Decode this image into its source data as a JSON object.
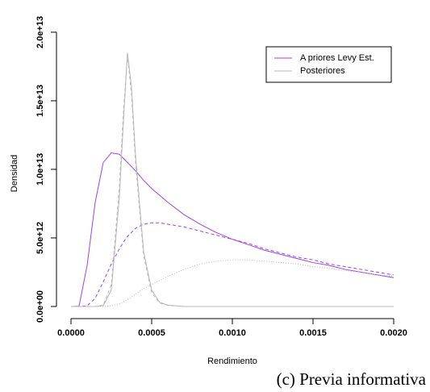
{
  "chart_data": {
    "type": "line",
    "xlabel": "Rendimiento",
    "ylabel": "Densidad",
    "caption": "(c) Previa informativa",
    "x": [
      0,
      5e-05,
      0.0001,
      0.00015,
      0.0002,
      0.00025,
      0.0003,
      0.000325,
      0.00035,
      0.000375,
      0.0004,
      0.00045,
      0.0005,
      0.00055,
      0.0006,
      0.0007,
      0.0008,
      0.0009,
      0.001,
      0.0011,
      0.0012,
      0.0013,
      0.0014,
      0.0015,
      0.0016,
      0.0017,
      0.0018,
      0.0019,
      0.002
    ],
    "series": [
      {
        "name": "A priores Levy Est.",
        "color": "#a040f0",
        "linestyle": "solid",
        "values": [
          0,
          20000000000.0,
          3000000000000.0,
          7600000000000.0,
          10500000000000.0,
          11200000000000.0,
          11100000000000.0,
          10800000000000.0,
          10500000000000.0,
          10200000000000.0,
          9900000000000.0,
          9200000000000.0,
          8600000000000.0,
          8100000000000.0,
          7600000000000.0,
          6700000000000.0,
          6000000000000.0,
          5400000000000.0,
          4900000000000.0,
          4500000000000.0,
          4100000000000.0,
          3800000000000.0,
          3500000000000.0,
          3200000000000.0,
          3000000000000.0,
          2700000000000.0,
          2500000000000.0,
          2300000000000.0,
          2100000000000.0
        ]
      },
      {
        "color": "#a040f0",
        "linestyle": "dashed",
        "values": [
          0,
          0,
          50000000000.0,
          600000000000.0,
          1800000000000.0,
          3100000000000.0,
          4200000000000.0,
          4700000000000.0,
          5100000000000.0,
          5400000000000.0,
          5700000000000.0,
          6000000000000.0,
          6100000000000.0,
          6100000000000.0,
          6000000000000.0,
          5800000000000.0,
          5500000000000.0,
          5200000000000.0,
          4900000000000.0,
          4600000000000.0,
          4200000000000.0,
          3900000000000.0,
          3600000000000.0,
          3400000000000.0,
          3100000000000.0,
          2900000000000.0,
          2700000000000.0,
          2500000000000.0,
          2300000000000.0
        ]
      },
      {
        "color": "#b8b8b8",
        "linestyle": "dotted",
        "values": [
          0,
          0,
          0,
          0,
          0,
          50000000000.0,
          200000000000.0,
          350000000000.0,
          500000000000.0,
          700000000000.0,
          900000000000.0,
          1300000000000.0,
          1600000000000.0,
          1900000000000.0,
          2200000000000.0,
          2700000000000.0,
          3100000000000.0,
          3300000000000.0,
          3400000000000.0,
          3400000000000.0,
          3300000000000.0,
          3200000000000.0,
          3100000000000.0,
          2900000000000.0,
          2800000000000.0,
          2600000000000.0,
          2500000000000.0,
          2300000000000.0,
          2200000000000.0
        ]
      },
      {
        "name": "Posteriores",
        "color": "#b8b8b8",
        "linestyle": "solid",
        "values": [
          0,
          0,
          0,
          0,
          50000000000.0,
          1200000000000.0,
          8000000000000.0,
          13500000000000.0,
          18500000000000.0,
          16000000000000.0,
          11000000000000.0,
          4000000000000.0,
          1200000000000.0,
          300000000000.0,
          100000000000.0,
          0,
          0,
          0,
          0,
          0,
          0,
          0,
          0,
          0,
          0,
          0,
          0,
          0,
          0
        ]
      },
      {
        "color": "#b8b8b8",
        "linestyle": "dashed",
        "values": [
          0,
          0,
          0,
          0,
          100000000000.0,
          1600000000000.0,
          8800000000000.0,
          14200000000000.0,
          18300000000000.0,
          15500000000000.0,
          10500000000000.0,
          3700000000000.0,
          1000000000000.0,
          250000000000.0,
          80000000000.0,
          0,
          0,
          0,
          0,
          0,
          0,
          0,
          0,
          0,
          0,
          0,
          0,
          0,
          0
        ]
      }
    ],
    "xlim": [
      -8e-05,
      0.002085
    ],
    "ylim": [
      -590000000000.0,
      21760000000000.0
    ],
    "xticks": [
      {
        "value": 0,
        "label": "0.0000"
      },
      {
        "value": 0.0005,
        "label": "0.0005"
      },
      {
        "value": 0.001,
        "label": "0.0010"
      },
      {
        "value": 0.0015,
        "label": "0.0015"
      },
      {
        "value": 0.002,
        "label": "0.0020"
      }
    ],
    "yticks": [
      {
        "value": 0,
        "label": "0.0e+00"
      },
      {
        "value": 5000000000000.0,
        "label": "5.0e+12"
      },
      {
        "value": 10000000000000.0,
        "label": "1.0e+13"
      },
      {
        "value": 15000000000000.0,
        "label": "1.5e+13"
      },
      {
        "value": 20000000000000.0,
        "label": "2.0e+13"
      }
    ],
    "legend": "topright"
  }
}
